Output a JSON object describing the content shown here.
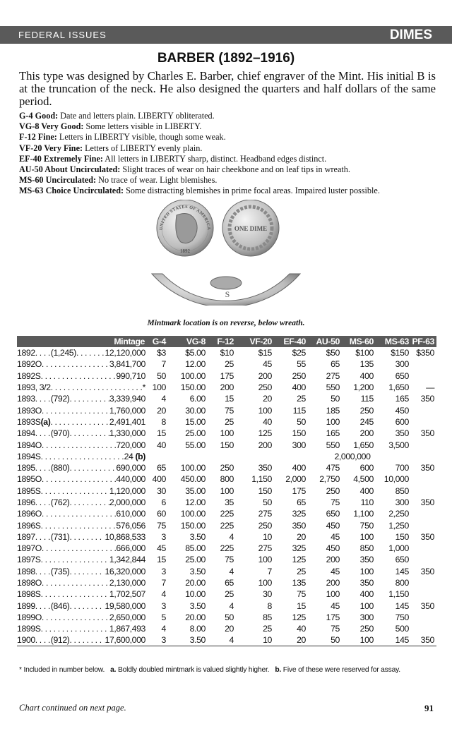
{
  "header": {
    "section": "FEDERAL ISSUES",
    "category": "DIMES"
  },
  "title": "BARBER (1892–1916)",
  "intro": "This type was designed by Charles E. Barber, chief engraver of the Mint. His initial B is at the truncation of the neck. He also designed the quarters and half dollars of the same period.",
  "grades": [
    {
      "g": "G-4 Good:",
      "d": "Date and letters plain. LIBERTY obliterated."
    },
    {
      "g": "VG-8 Very Good:",
      "d": "Some letters visible in LIBERTY."
    },
    {
      "g": "F-12 Fine:",
      "d": "Letters in LIBERTY visible, though some weak."
    },
    {
      "g": "VF-20 Very Fine:",
      "d": "Letters of LIBERTY evenly plain."
    },
    {
      "g": "EF-40 Extremely Fine:",
      "d": "All letters in LIBERTY sharp, distinct. Headband edges distinct."
    },
    {
      "g": "AU-50 About Uncirculated:",
      "d": "Slight traces of wear on hair cheekbone and on leaf tips in wreath."
    },
    {
      "g": "MS-60 Uncirculated:",
      "d": "No trace of wear. Light blemishes."
    },
    {
      "g": "MS-63 Choice Uncirculated:",
      "d": "Some distracting blemishes in prime focal areas. Impaired luster possible."
    }
  ],
  "coin": {
    "obverse_legend": "UNITED STATES OF AMERICA",
    "obverse_date": "1892",
    "reverse_text": "ONE DIME",
    "mintmark": "S"
  },
  "caption": "Mintmark location is on reverse, below wreath.",
  "table": {
    "headers": [
      "Mintage",
      "G-4",
      "VG-8",
      "F-12",
      "VF-20",
      "EF-40",
      "AU-50",
      "MS-60",
      "MS-63",
      "PF-63"
    ],
    "rows": [
      {
        "date": "1892",
        "proof": "(1,245)",
        "mintage": "12,120,000",
        "v": [
          "$3",
          "$5.00",
          "$10",
          "$15",
          "$25",
          "$50",
          "$100",
          "$150",
          "$350"
        ]
      },
      {
        "date": "1892O",
        "mintage": "3,841,700",
        "v": [
          "7",
          "12.00",
          "25",
          "45",
          "55",
          "65",
          "135",
          "300",
          ""
        ]
      },
      {
        "date": "1892S",
        "mintage": "990,710",
        "v": [
          "50",
          "100.00",
          "175",
          "200",
          "250",
          "275",
          "400",
          "650",
          ""
        ]
      },
      {
        "date": "1893, 3/2",
        "mintage": "*",
        "v": [
          "100",
          "150.00",
          "200",
          "250",
          "400",
          "550",
          "1,200",
          "1,650",
          "—"
        ]
      },
      {
        "date": "1893",
        "proof": "(792)",
        "mintage": "3,339,940",
        "v": [
          "4",
          "6.00",
          "15",
          "20",
          "25",
          "50",
          "115",
          "165",
          "350"
        ]
      },
      {
        "date": "1893O",
        "mintage": "1,760,000",
        "v": [
          "20",
          "30.00",
          "75",
          "100",
          "115",
          "185",
          "250",
          "450",
          ""
        ]
      },
      {
        "date": "1893S",
        "note": "(a)",
        "mintage": "2,491,401",
        "v": [
          "8",
          "15.00",
          "25",
          "40",
          "50",
          "100",
          "245",
          "600",
          ""
        ]
      },
      {
        "date": "1894",
        "proof": "(970)",
        "mintage": "1,330,000",
        "v": [
          "15",
          "25.00",
          "100",
          "125",
          "150",
          "165",
          "200",
          "350",
          "350"
        ]
      },
      {
        "date": "1894O",
        "mintage": "720,000",
        "v": [
          "40",
          "55.00",
          "150",
          "200",
          "300",
          "550",
          "1,650",
          "3,500",
          ""
        ]
      },
      {
        "date": "1894S",
        "mintage": "24",
        "mnote": "(b)",
        "span": "2,000,000"
      },
      {
        "date": "1895",
        "proof": "(880)",
        "mintage": "690,000",
        "v": [
          "65",
          "100.00",
          "250",
          "350",
          "400",
          "475",
          "600",
          "700",
          "350"
        ]
      },
      {
        "date": "1895O",
        "mintage": "440,000",
        "v": [
          "400",
          "450.00",
          "800",
          "1,150",
          "2,000",
          "2,750",
          "4,500",
          "10,000",
          ""
        ]
      },
      {
        "date": "1895S",
        "mintage": "1,120,000",
        "v": [
          "30",
          "35.00",
          "100",
          "150",
          "175",
          "250",
          "400",
          "850",
          ""
        ]
      },
      {
        "date": "1896",
        "proof": "(762)",
        "mintage": "2,000,000",
        "v": [
          "6",
          "12.00",
          "35",
          "50",
          "65",
          "75",
          "110",
          "300",
          "350"
        ]
      },
      {
        "date": "1896O",
        "mintage": "610,000",
        "v": [
          "60",
          "100.00",
          "225",
          "275",
          "325",
          "650",
          "1,100",
          "2,250",
          ""
        ]
      },
      {
        "date": "1896S",
        "mintage": "576,056",
        "v": [
          "75",
          "150.00",
          "225",
          "250",
          "350",
          "450",
          "750",
          "1,250",
          ""
        ]
      },
      {
        "date": "1897",
        "proof": "(731)",
        "mintage": "10,868,533",
        "v": [
          "3",
          "3.50",
          "4",
          "10",
          "20",
          "45",
          "100",
          "150",
          "350"
        ]
      },
      {
        "date": "1897O",
        "mintage": "666,000",
        "v": [
          "45",
          "85.00",
          "225",
          "275",
          "325",
          "450",
          "850",
          "1,000",
          ""
        ]
      },
      {
        "date": "1897S",
        "mintage": "1,342,844",
        "v": [
          "15",
          "25.00",
          "75",
          "100",
          "125",
          "200",
          "350",
          "650",
          ""
        ]
      },
      {
        "date": "1898",
        "proof": "(735)",
        "mintage": "16,320,000",
        "v": [
          "3",
          "3.50",
          "4",
          "7",
          "25",
          "45",
          "100",
          "145",
          "350"
        ]
      },
      {
        "date": "1898O",
        "mintage": "2,130,000",
        "v": [
          "7",
          "20.00",
          "65",
          "100",
          "135",
          "200",
          "350",
          "800",
          ""
        ]
      },
      {
        "date": "1898S",
        "mintage": "1,702,507",
        "v": [
          "4",
          "10.00",
          "25",
          "30",
          "75",
          "100",
          "400",
          "1,150",
          ""
        ]
      },
      {
        "date": "1899",
        "proof": "(846)",
        "mintage": "19,580,000",
        "v": [
          "3",
          "3.50",
          "4",
          "8",
          "15",
          "45",
          "100",
          "145",
          "350"
        ]
      },
      {
        "date": "1899O",
        "mintage": "2,650,000",
        "v": [
          "5",
          "20.00",
          "50",
          "85",
          "125",
          "175",
          "300",
          "750",
          ""
        ]
      },
      {
        "date": "1899S",
        "mintage": "1,867,493",
        "v": [
          "4",
          "8.00",
          "20",
          "25",
          "40",
          "75",
          "250",
          "500",
          ""
        ]
      },
      {
        "date": "1900",
        "proof": "(912)",
        "mintage": "17,600,000",
        "v": [
          "3",
          "3.50",
          "4",
          "10",
          "20",
          "50",
          "100",
          "145",
          "350"
        ]
      }
    ]
  },
  "footnote": {
    "star": "* Included in number below.",
    "a_label": "a.",
    "a": "Boldly doubled mintmark is valued slightly higher.",
    "b_label": "b.",
    "b": "Five of these were reserved for assay."
  },
  "footer": {
    "continued": "Chart continued on next page.",
    "page": "91"
  }
}
